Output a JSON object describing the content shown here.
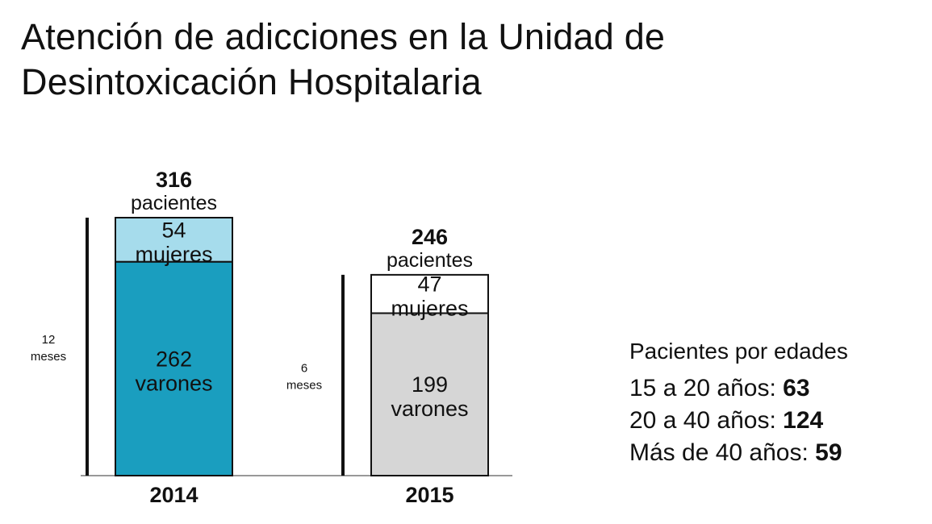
{
  "title": {
    "line1": "Atención de adicciones en la Unidad de",
    "line2": "Desintoxicación Hospitalaria"
  },
  "chart_data": {
    "type": "bar",
    "stacked": true,
    "categories": [
      "2014",
      "2015"
    ],
    "totals": [
      316,
      246
    ],
    "total_unit": "pacientes",
    "periods": [
      {
        "value": "12",
        "unit": "meses"
      },
      {
        "value": "6",
        "unit": "meses"
      }
    ],
    "series": [
      {
        "name": "varones",
        "values": [
          262,
          199
        ],
        "colors": [
          "#1a9ebf",
          "#d6d6d6"
        ]
      },
      {
        "name": "mujeres",
        "values": [
          54,
          47
        ],
        "colors": [
          "#a6dcec",
          "#ffffff"
        ]
      }
    ],
    "ylim": [
      0,
      316
    ],
    "grid": false
  },
  "ages": {
    "title": "Pacientes por edades",
    "rows": [
      {
        "label": "15 a 20 años:",
        "value": "63"
      },
      {
        "label": "20 a 40 años:",
        "value": "124"
      },
      {
        "label": "Más de 40 años:",
        "value": "59"
      }
    ]
  }
}
